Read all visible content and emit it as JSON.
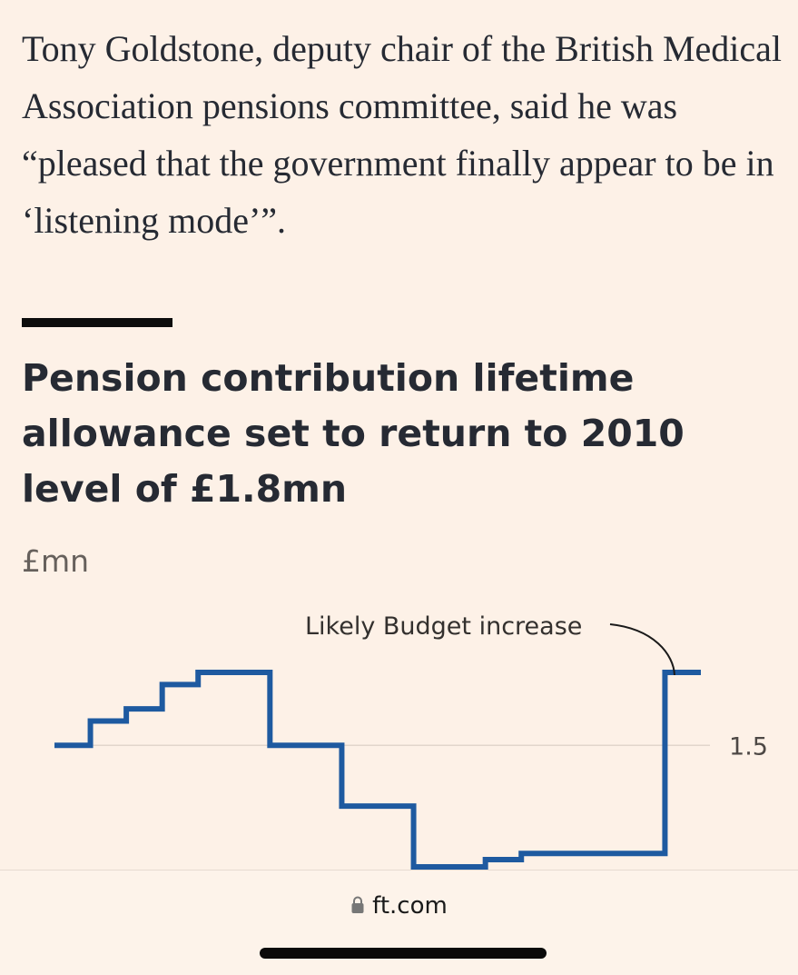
{
  "article": {
    "paragraph": "Tony Goldstone, deputy chair of the British Medical Association pensions committee, said he was “pleased that the government finally appear to be in ‘listening mode’”."
  },
  "chart_data": {
    "type": "line",
    "step": true,
    "title": "Pension contribution lifetime allowance set to return to 2010 level of £1.8mn",
    "unit_label": "£mn",
    "ytick_labels": [
      "1.5"
    ],
    "yticks": [
      1.5
    ],
    "annotation": "Likely Budget increase",
    "color": "#1e5aa0",
    "series": [
      {
        "points": [
          {
            "x": 2006,
            "y": 1.5
          },
          {
            "x": 2007,
            "y": 1.6
          },
          {
            "x": 2008,
            "y": 1.65
          },
          {
            "x": 2009,
            "y": 1.75
          },
          {
            "x": 2010,
            "y": 1.8
          },
          {
            "x": 2012,
            "y": 1.5
          },
          {
            "x": 2014,
            "y": 1.25
          },
          {
            "x": 2016,
            "y": 1.0
          },
          {
            "x": 2018,
            "y": 1.03
          },
          {
            "x": 2019,
            "y": 1.055
          },
          {
            "x": 2023,
            "y": 1.8
          }
        ],
        "x_end": 2024
      }
    ],
    "xlim": [
      2006,
      2024
    ],
    "ylim": [
      1.0,
      1.8
    ]
  },
  "browser": {
    "url": "ft.com"
  },
  "colors": {
    "background": "#fdf1e7",
    "text": "#262a33",
    "line": "#1e5aa0"
  }
}
